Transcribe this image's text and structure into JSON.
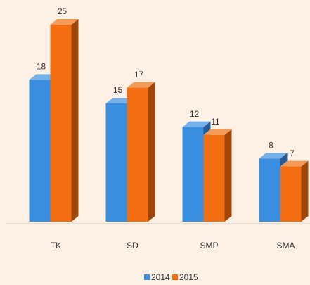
{
  "chart_data": {
    "type": "bar3d",
    "categories": [
      "TK",
      "SD",
      "SMP",
      "SMA"
    ],
    "series": [
      {
        "name": "2014",
        "color": "#3a8ee0",
        "values": [
          18,
          15,
          12,
          8
        ]
      },
      {
        "name": "2015",
        "color": "#f26e10",
        "values": [
          25,
          17,
          11,
          7
        ]
      }
    ]
  }
}
